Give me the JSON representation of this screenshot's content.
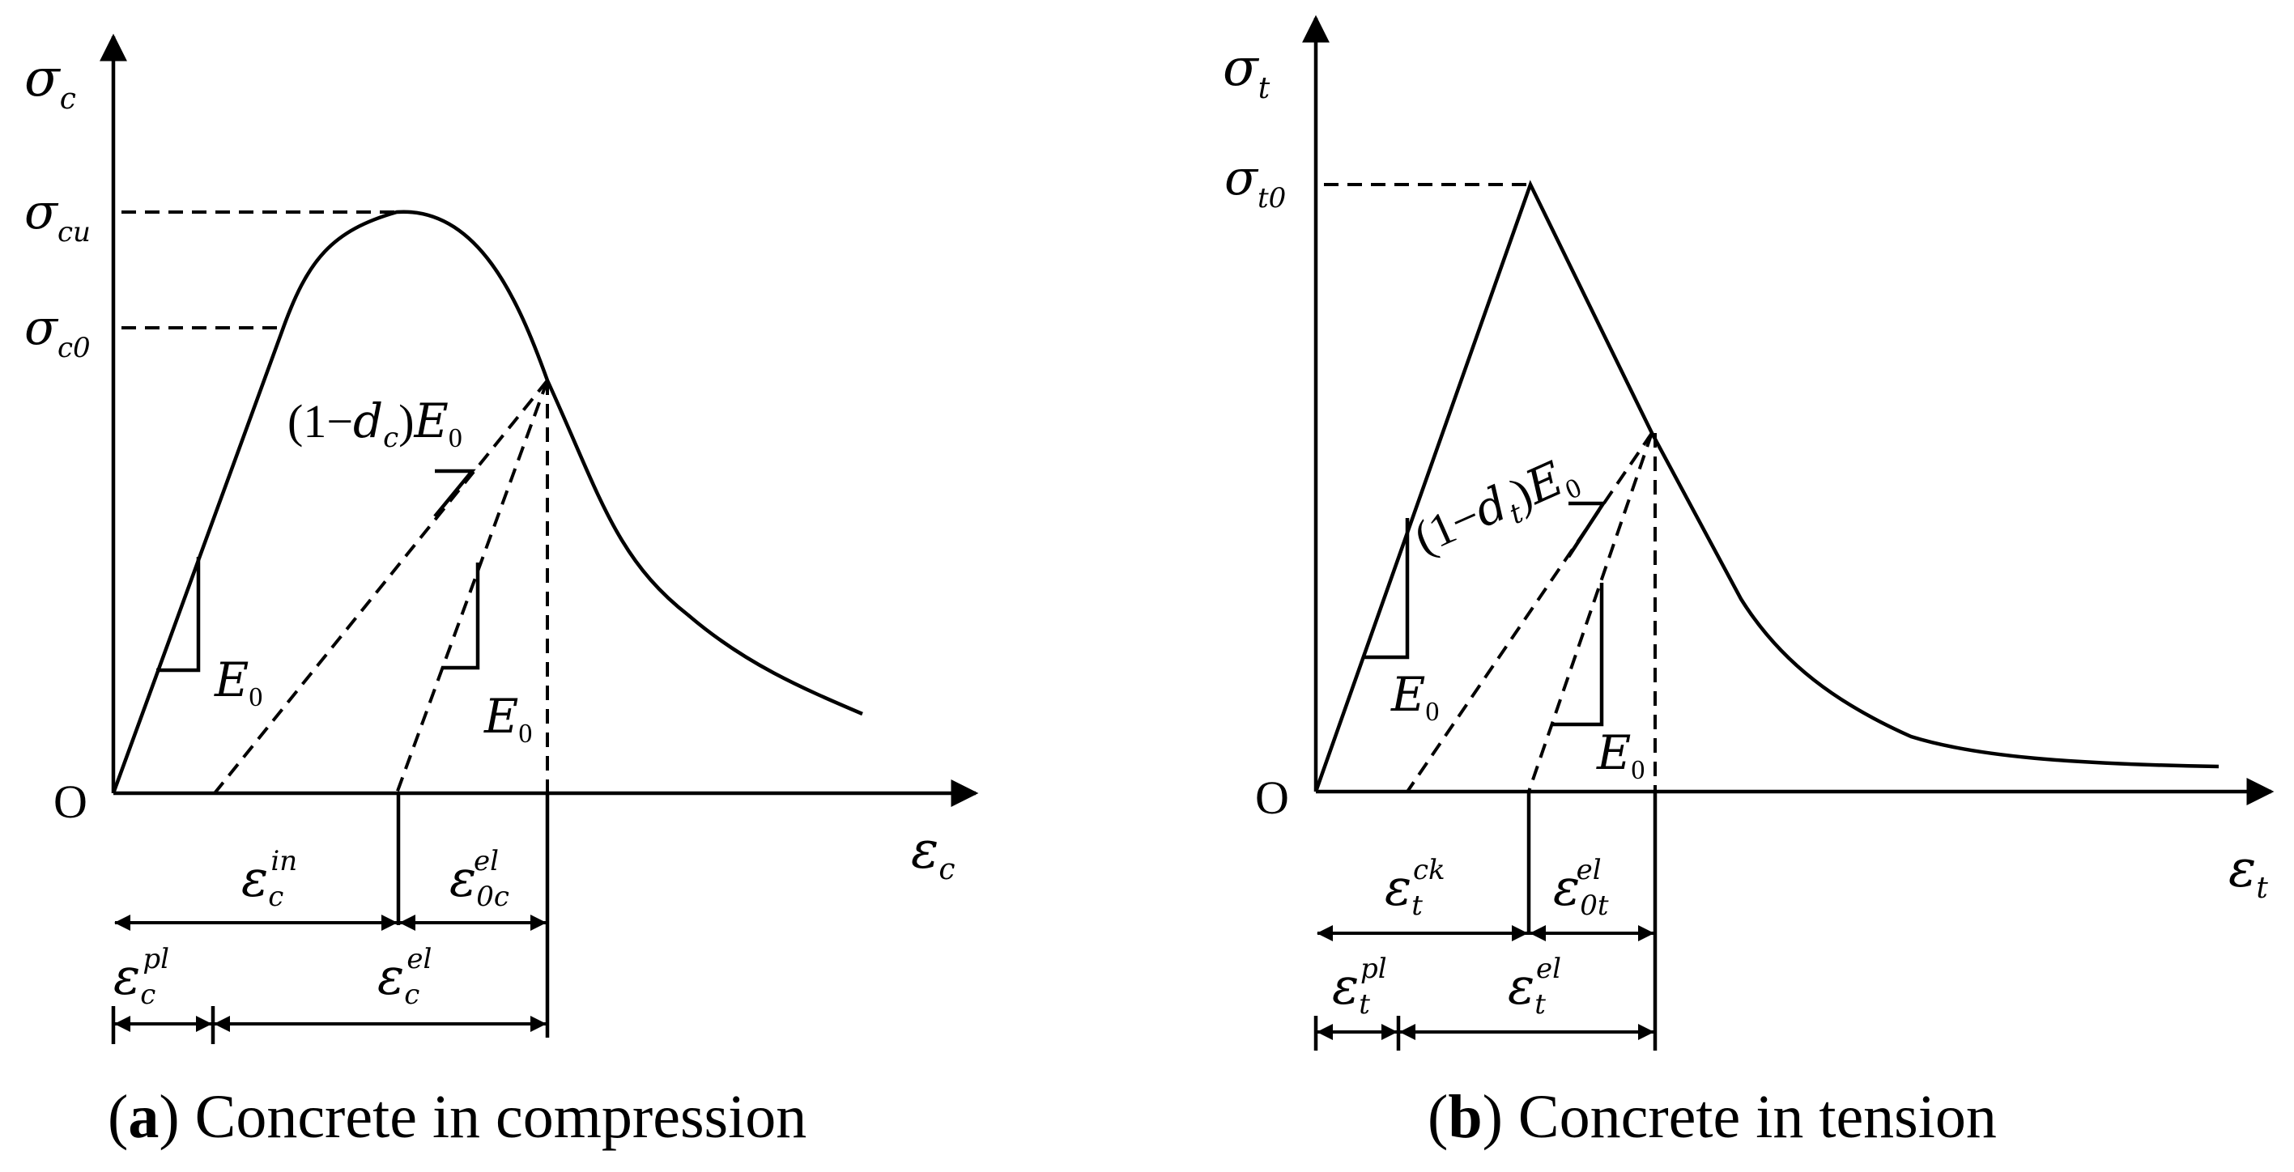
{
  "panel_a": {
    "y_axis": {
      "sym": "σ",
      "sub": "c"
    },
    "x_axis": {
      "sym": "ε",
      "sub": "c"
    },
    "origin": "O",
    "peak_label": {
      "sym": "σ",
      "sub": "cu"
    },
    "yield_label": {
      "sym": "σ",
      "sub": "c0"
    },
    "unload_modulus": {
      "prefix": "(1−",
      "d": "d",
      "d_sub": "c",
      "close": ")",
      "E": "E",
      "E_sub": "0"
    },
    "modulus_left": {
      "sym": "E",
      "sub": "0"
    },
    "modulus_right": {
      "sym": "E",
      "sub": "0"
    },
    "eps_in": {
      "sym": "ε",
      "sub": "c",
      "sup": "in"
    },
    "eps_0el": {
      "sym": "ε",
      "sub": "0c",
      "sup": "el"
    },
    "eps_pl": {
      "sym": "ε",
      "sub": "c",
      "sup": "pl"
    },
    "eps_el": {
      "sym": "ε",
      "sub": "c",
      "sup": "el"
    },
    "caption": {
      "letter": "a",
      "text": " Concrete in compression"
    }
  },
  "panel_b": {
    "y_axis": {
      "sym": "σ",
      "sub": "t"
    },
    "x_axis": {
      "sym": "ε",
      "sub": "t"
    },
    "origin": "O",
    "peak_label": {
      "sym": "σ",
      "sub": "t0"
    },
    "unload_modulus": {
      "prefix": "(1−",
      "d": "d",
      "d_sub": "t",
      "close": ")",
      "E": "E",
      "E_sub": "0"
    },
    "modulus_left": {
      "sym": "E",
      "sub": "0"
    },
    "modulus_right": {
      "sym": "E",
      "sub": "0"
    },
    "eps_ck": {
      "sym": "ε",
      "sub": "t",
      "sup": "ck"
    },
    "eps_0el": {
      "sym": "ε",
      "sub": "0t",
      "sup": "el"
    },
    "eps_pl": {
      "sym": "ε",
      "sub": "t",
      "sup": "pl"
    },
    "eps_el": {
      "sym": "ε",
      "sub": "t",
      "sup": "el"
    },
    "caption": {
      "letter": "b",
      "text": " Concrete in tension"
    }
  }
}
